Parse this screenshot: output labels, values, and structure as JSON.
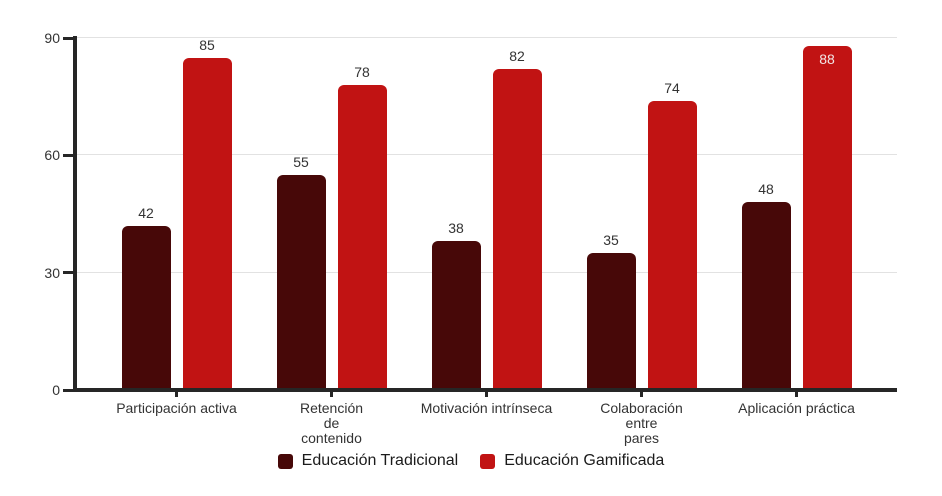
{
  "chart_data": {
    "type": "bar",
    "title": "",
    "xlabel": "",
    "ylabel": "",
    "categories": [
      "Participación activa",
      "Retención de contenido",
      "Motivación intrínseca",
      "Colaboración entre pares",
      "Aplicación práctica"
    ],
    "category_label_lines": [
      [
        "Participación activa"
      ],
      [
        "Retención",
        "de",
        "contenido"
      ],
      [
        "Motivación intrínseca"
      ],
      [
        "Colaboración",
        "entre",
        "pares"
      ],
      [
        "Aplicación práctica"
      ]
    ],
    "series": [
      {
        "name": "Educación Tradicional",
        "color": "#470808",
        "values": [
          42,
          55,
          38,
          35,
          48
        ]
      },
      {
        "name": "Educación Gamificada",
        "color": "#c11313",
        "values": [
          85,
          78,
          82,
          74,
          88
        ]
      }
    ],
    "ylim": [
      0,
      90
    ],
    "y_ticks": [
      0,
      30,
      60,
      90
    ],
    "grid": true,
    "legend_position": "bottom",
    "value_labels": true
  },
  "colors": {
    "axis": "#262626",
    "gridline": "#e2e2e2",
    "text": "#333333",
    "legend_text": "#1b1b1b",
    "value_label": "#333333",
    "value_label_inside": "#f2e6e6",
    "background": "#ffffff"
  }
}
